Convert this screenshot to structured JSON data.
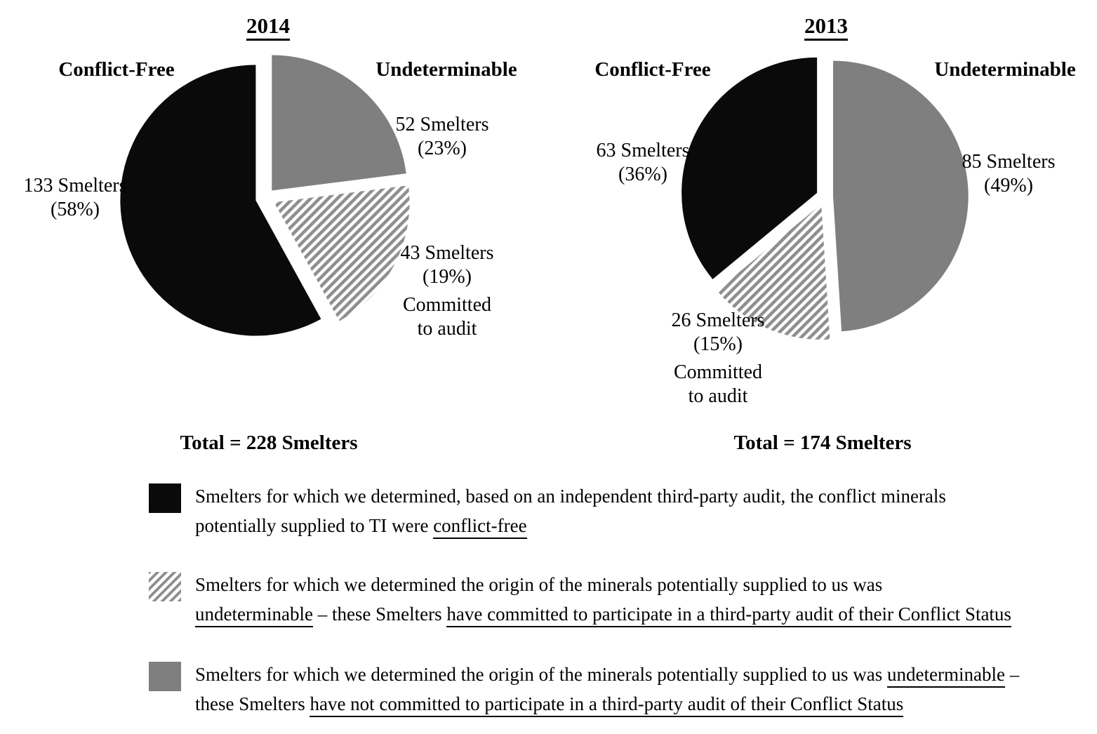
{
  "colors": {
    "black": "#0a0a0a",
    "gray": "#7f7f7f",
    "hatch_stripe": "#8f8f8f",
    "background": "#ffffff",
    "text": "#000000"
  },
  "chart_data": [
    {
      "type": "pie",
      "title": "2014",
      "total_label": "Total = 228 Smelters",
      "start_angle_deg": 0,
      "direction": "clockwise-from-top",
      "labels": {
        "left_category": "Conflict-Free",
        "right_category": "Undeterminable"
      },
      "slices": [
        {
          "category": "Undeterminable",
          "smelters": 52,
          "percent": 23,
          "fill": "gray",
          "label_lines": [
            "52 Smelters",
            "(23%)"
          ]
        },
        {
          "category": "Committed to audit",
          "smelters": 43,
          "percent": 19,
          "fill": "hatch",
          "label_lines": [
            "43 Smelters",
            "(19%)",
            "Committed",
            "to audit"
          ]
        },
        {
          "category": "Conflict-Free",
          "smelters": 133,
          "percent": 58,
          "fill": "black",
          "label_lines": [
            "133 Smelters",
            "(58%)"
          ]
        }
      ]
    },
    {
      "type": "pie",
      "title": "2013",
      "total_label": "Total = 174 Smelters",
      "start_angle_deg": 0,
      "direction": "clockwise-from-top",
      "labels": {
        "left_category": "Conflict-Free",
        "right_category": "Undeterminable"
      },
      "slices": [
        {
          "category": "Undeterminable",
          "smelters": 85,
          "percent": 49,
          "fill": "gray",
          "label_lines": [
            "85 Smelters",
            "(49%)"
          ]
        },
        {
          "category": "Committed to audit",
          "smelters": 26,
          "percent": 15,
          "fill": "hatch",
          "label_lines": [
            "26 Smelters",
            "(15%)",
            "Committed",
            "to audit"
          ]
        },
        {
          "category": "Conflict-Free",
          "smelters": 63,
          "percent": 36,
          "fill": "black",
          "label_lines": [
            "63 Smelters",
            "(36%)"
          ]
        }
      ]
    }
  ],
  "legend": {
    "items": [
      {
        "swatch": "black",
        "meaning": "conflict-free",
        "lines": [
          [
            {
              "t": "Smelters for which we determined, based on an independent third-party audit, the conflict minerals"
            }
          ],
          [
            {
              "t": "potentially supplied to TI were "
            },
            {
              "t": "conflict-free",
              "u": true
            }
          ]
        ]
      },
      {
        "swatch": "hatch",
        "meaning": "undeterminable-committed-to-audit",
        "lines": [
          [
            {
              "t": "Smelters for which we determined the origin of the minerals potentially supplied to us was"
            }
          ],
          [
            {
              "t": "undeterminable",
              "u": true
            },
            {
              "t": " – these Smelters "
            },
            {
              "t": "have committed to participate in a third-party audit of their Conflict Status",
              "u": true
            }
          ]
        ]
      },
      {
        "swatch": "gray",
        "meaning": "undeterminable-not-committed",
        "lines": [
          [
            {
              "t": "Smelters for which we determined the origin of the minerals potentially supplied to us was "
            },
            {
              "t": "undeterminable",
              "u": true
            },
            {
              "t": " –"
            }
          ],
          [
            {
              "t": "these Smelters "
            },
            {
              "t": "have not committed to participate in a third-party audit of their Conflict Status",
              "u": true
            }
          ]
        ]
      }
    ]
  }
}
